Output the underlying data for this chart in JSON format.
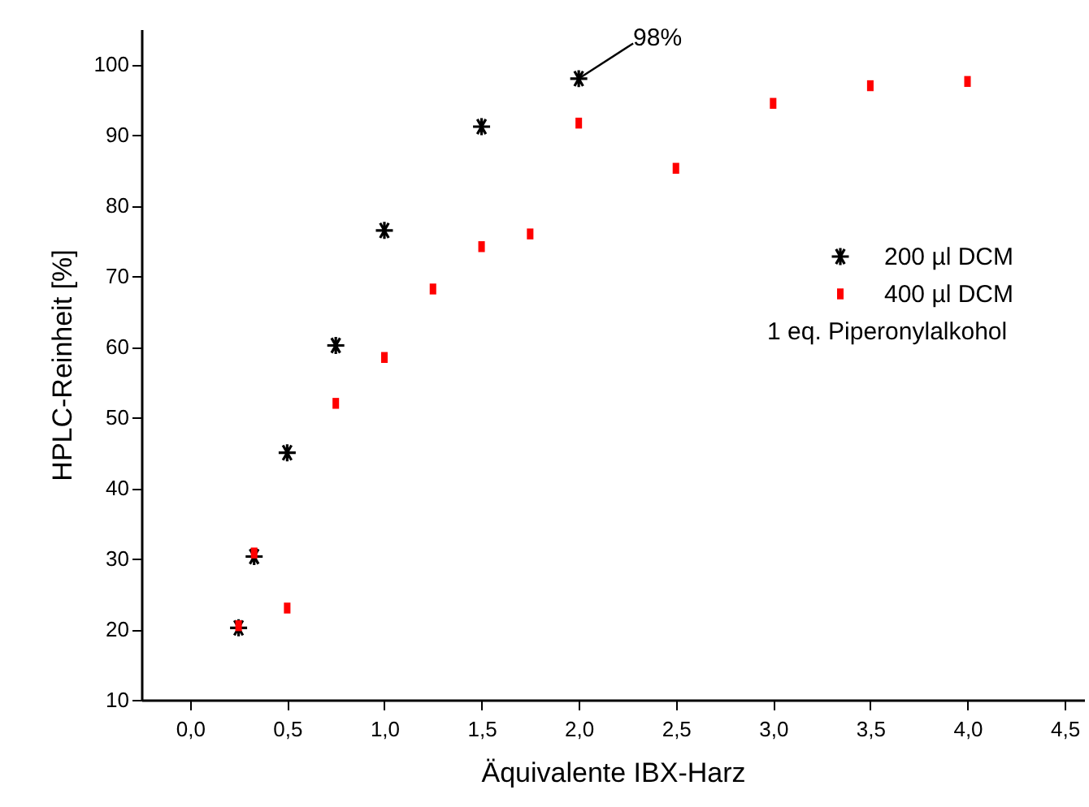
{
  "chart_data": {
    "type": "scatter",
    "xlabel": "Äquivalente IBX-Harz",
    "ylabel": "HPLC-Reinheit [%]",
    "xlim": [
      -0.25,
      4.6
    ],
    "xticks": [
      {
        "value": 0,
        "label": "0,0"
      },
      {
        "value": 0.5,
        "label": "0,5"
      },
      {
        "value": 1,
        "label": "1,0"
      },
      {
        "value": 1.5,
        "label": "1,5"
      },
      {
        "value": 2,
        "label": "2,0"
      },
      {
        "value": 2.5,
        "label": "2,5"
      },
      {
        "value": 3,
        "label": "3,0"
      },
      {
        "value": 3.5,
        "label": "3,5"
      },
      {
        "value": 4,
        "label": "4,0"
      },
      {
        "value": 4.5,
        "label": "4,5"
      }
    ],
    "ylim": [
      10,
      105
    ],
    "yticks": [
      10,
      20,
      30,
      40,
      50,
      60,
      70,
      80,
      90,
      100
    ],
    "grid": false,
    "legend": "right",
    "series": [
      {
        "name": "200 µl DCM",
        "color": "#000000",
        "marker": "cross",
        "x": [
          0.25,
          0.33,
          0.5,
          0.75,
          1.0,
          1.5,
          2.0
        ],
        "values": [
          20.2,
          30.3,
          45,
          60.2,
          76.5,
          91.2,
          98
        ]
      },
      {
        "name": "400 µl DCM",
        "color": "#ff0000",
        "marker": "square",
        "x": [
          0.25,
          0.33,
          0.5,
          0.75,
          1.0,
          1.25,
          1.5,
          1.75,
          2.0,
          2.5,
          3.0,
          3.5,
          4.0
        ],
        "values": [
          20.5,
          30.8,
          23,
          52,
          58.5,
          68.2,
          74.2,
          76,
          91.7,
          85.3,
          94.5,
          97,
          97.6
        ]
      }
    ],
    "annotations": [
      {
        "text": "98%",
        "x": 2.0,
        "y": 98
      },
      "1 eq. Piperonylalkohol"
    ]
  }
}
